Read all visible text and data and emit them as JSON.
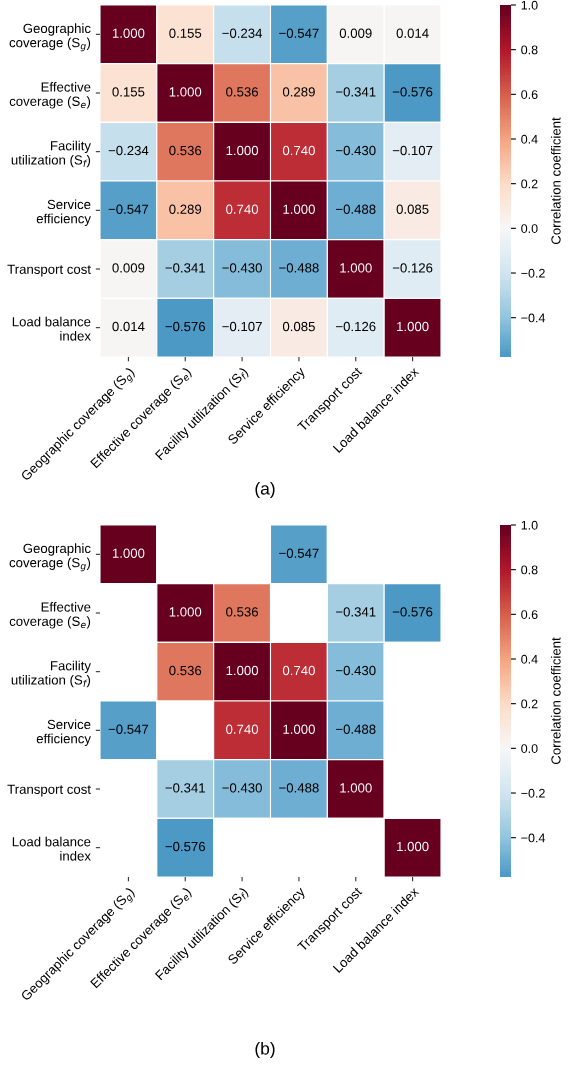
{
  "chart_data": [
    {
      "type": "heatmap",
      "clabel": "Correlation coefficient",
      "data_labels": true,
      "categories": [
        "Geographic coverage (S$_{g}$)",
        "Effective coverage (S$_{e}$)",
        "Facility utilization (S$_{f}$)",
        "Service efficiency",
        "Transport cost",
        "Load balance index"
      ],
      "y_categories": [
        "Geographic\ncoverage (S$_{g}$)",
        "Effective\ncoverage (S$_{e}$)",
        "Facility\nutilization (S$_{f}$)",
        "Service\nefficiency",
        "Transport cost",
        "Load balance\nindex"
      ],
      "cells": [
        [
          1.0,
          0.155,
          -0.234,
          -0.547,
          0.009,
          0.014
        ],
        [
          0.155,
          1.0,
          0.536,
          0.289,
          -0.341,
          -0.576
        ],
        [
          -0.234,
          0.536,
          1.0,
          0.74,
          -0.43,
          -0.107
        ],
        [
          -0.547,
          0.289,
          0.74,
          1.0,
          -0.488,
          0.085
        ],
        [
          0.009,
          -0.341,
          -0.43,
          -0.488,
          1.0,
          -0.126
        ],
        [
          0.014,
          -0.576,
          -0.107,
          0.085,
          -0.126,
          1.0
        ]
      ],
      "cell_labels": [
        [
          "1.000",
          "0.155",
          "−0.234",
          "−0.547",
          "0.009",
          "0.014"
        ],
        [
          "0.155",
          "1.000",
          "0.536",
          "0.289",
          "−0.341",
          "−0.576"
        ],
        [
          "−0.234",
          "0.536",
          "1.000",
          "0.740",
          "−0.430",
          "−0.107"
        ],
        [
          "−0.547",
          "0.289",
          "0.740",
          "1.000",
          "−0.488",
          "0.085"
        ],
        [
          "0.009",
          "−0.341",
          "−0.430",
          "−0.488",
          "1.000",
          "−0.126"
        ],
        [
          "0.014",
          "−0.576",
          "−0.107",
          "0.085",
          "−0.126",
          "1.000"
        ]
      ],
      "clim": [
        -0.576,
        1.0
      ],
      "cticks": [
        {
          "value": -0.4,
          "label": "−0.4"
        },
        {
          "value": -0.2,
          "label": "−0.2"
        },
        {
          "value": 0,
          "label": "0.0"
        },
        {
          "value": 0.2,
          "label": "0.2"
        },
        {
          "value": 0.4,
          "label": "0.4"
        },
        {
          "value": 0.6,
          "label": "0.6"
        },
        {
          "value": 0.8,
          "label": "0.8"
        },
        {
          "value": 1,
          "label": "1.0"
        }
      ],
      "annotations": [
        "(a)"
      ]
    },
    {
      "type": "heatmap",
      "clabel": "Correlation coefficient",
      "data_labels": true,
      "categories": [
        "Geographic coverage (S$_{g}$)",
        "Effective coverage (S$_{e}$)",
        "Facility utilization (S$_{f}$)",
        "Service efficiency",
        "Transport cost",
        "Load balance index"
      ],
      "y_categories": [
        "Geographic\ncoverage (S$_{g}$)",
        "Effective\ncoverage (S$_{e}$)",
        "Facility\nutilization (S$_{f}$)",
        "Service\nefficiency",
        "Transport cost",
        "Load balance\nindex"
      ],
      "cells": [
        [
          1.0,
          null,
          null,
          -0.547,
          null,
          null
        ],
        [
          null,
          1.0,
          0.536,
          null,
          -0.341,
          -0.576
        ],
        [
          null,
          0.536,
          1.0,
          0.74,
          -0.43,
          null
        ],
        [
          -0.547,
          null,
          0.74,
          1.0,
          -0.488,
          null
        ],
        [
          null,
          -0.341,
          -0.43,
          -0.488,
          1.0,
          null
        ],
        [
          null,
          -0.576,
          null,
          null,
          null,
          1.0
        ]
      ],
      "cell_labels": [
        [
          "1.000",
          null,
          null,
          "−0.547",
          null,
          null
        ],
        [
          null,
          "1.000",
          "0.536",
          null,
          "−0.341",
          "−0.576"
        ],
        [
          null,
          "0.536",
          "1.000",
          "0.740",
          "−0.430",
          null
        ],
        [
          "−0.547",
          null,
          "0.740",
          "1.000",
          "−0.488",
          null
        ],
        [
          null,
          "−0.341",
          "−0.430",
          "−0.488",
          "1.000",
          null
        ],
        [
          null,
          "−0.576",
          null,
          null,
          null,
          "1.000"
        ]
      ],
      "clim": [
        -0.576,
        1.0
      ],
      "cticks": [
        {
          "value": -0.4,
          "label": "−0.4"
        },
        {
          "value": -0.2,
          "label": "−0.2"
        },
        {
          "value": 0,
          "label": "0.0"
        },
        {
          "value": 0.2,
          "label": "0.2"
        },
        {
          "value": 0.4,
          "label": "0.4"
        },
        {
          "value": 0.6,
          "label": "0.6"
        },
        {
          "value": 0.8,
          "label": "0.8"
        },
        {
          "value": 1,
          "label": "1.0"
        }
      ],
      "annotations": [
        "(b)"
      ]
    }
  ]
}
